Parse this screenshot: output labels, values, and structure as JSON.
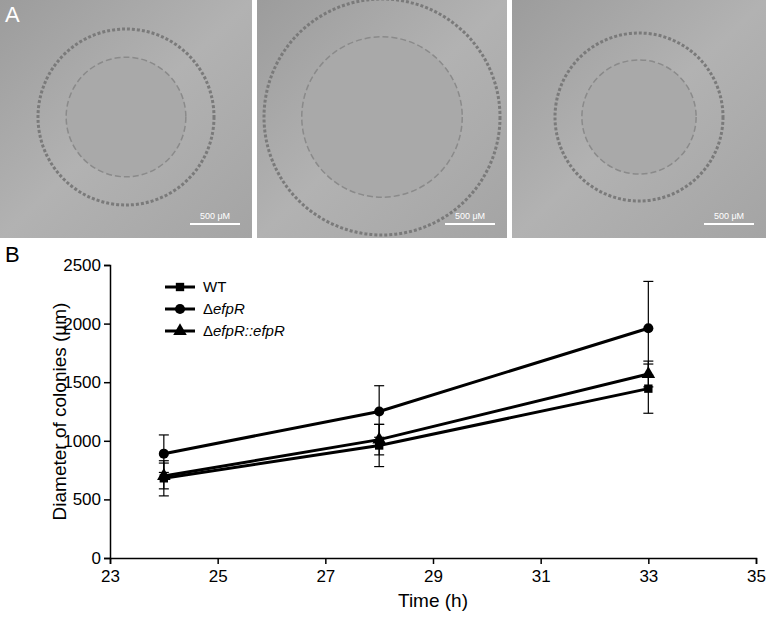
{
  "chart_data": {
    "type": "line",
    "x_label": "Time (h)",
    "y_label": "Diameter of colonies (µm)",
    "x": [
      24,
      28,
      33
    ],
    "series": [
      {
        "name": "WT",
        "color": "#000000",
        "marker": "square",
        "values": [
          680,
          960,
          1445
        ],
        "errors": [
          150,
          180,
          210
        ]
      },
      {
        "name": "ΔefpR",
        "color": "#000000",
        "marker": "circle",
        "values": [
          890,
          1250,
          1960
        ],
        "errors": [
          160,
          220,
          400
        ]
      },
      {
        "name": "ΔefpR::efpR",
        "color": "#000000",
        "marker": "triangle",
        "values": [
          700,
          1010,
          1570
        ],
        "errors": [
          110,
          130,
          110
        ]
      }
    ],
    "xlim": [
      23,
      35
    ],
    "xticks": [
      23,
      25,
      27,
      29,
      31,
      33,
      35
    ],
    "ylim": [
      0,
      2500
    ],
    "yticks": [
      0,
      500,
      1000,
      1500,
      2000,
      2500
    ],
    "legend": "top-left",
    "grid": false
  },
  "figure": {
    "panel_labels": [
      "A",
      "B"
    ],
    "micrographs": [
      {
        "scale_bar": "500 μM"
      },
      {
        "scale_bar": "500 μM"
      },
      {
        "scale_bar": "500 μM"
      }
    ]
  }
}
